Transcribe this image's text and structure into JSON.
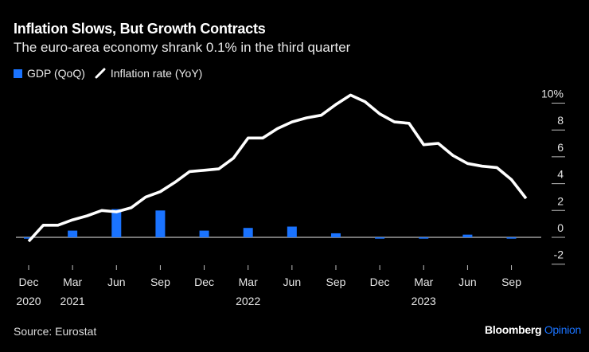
{
  "header": {
    "title": "Inflation Slows, But Growth Contracts",
    "subtitle": "The euro-area economy shrank 0.1% in the third quarter"
  },
  "legend": {
    "gdp_label": "GDP (QoQ)",
    "inflation_label": "Inflation rate (YoY)"
  },
  "footer": {
    "source": "Source: Eurostat",
    "brand_main": "Bloomberg",
    "brand_accent": "Opinion"
  },
  "colors": {
    "background": "#000000",
    "gdp_bar": "#1a73ff",
    "inflation_line": "#ffffff",
    "accent": "#1a73ff"
  },
  "chart_data": {
    "type": "bar+line",
    "title": "Inflation Slows, But Growth Contracts",
    "subtitle": "The euro-area economy shrank 0.1% in the third quarter",
    "xlabel": "",
    "ylabel": "",
    "ylim": [
      -2,
      10
    ],
    "y_ticks": [
      "10%",
      "8",
      "6",
      "4",
      "2",
      "0",
      "-2"
    ],
    "y_tick_values": [
      10,
      8,
      6,
      4,
      2,
      0,
      -2
    ],
    "y_axis_side": "right",
    "grid": false,
    "legend_position": "top-left",
    "x_ticks": [
      {
        "month": "Dec",
        "year": "2020"
      },
      {
        "month": "Mar",
        "year": "2021"
      },
      {
        "month": "Jun",
        "year": ""
      },
      {
        "month": "Sep",
        "year": ""
      },
      {
        "month": "Dec",
        "year": ""
      },
      {
        "month": "Mar",
        "year": "2022"
      },
      {
        "month": "Jun",
        "year": ""
      },
      {
        "month": "Sep",
        "year": ""
      },
      {
        "month": "Dec",
        "year": ""
      },
      {
        "month": "Mar",
        "year": "2023"
      },
      {
        "month": "Jun",
        "year": ""
      },
      {
        "month": "Sep",
        "year": ""
      }
    ],
    "series": [
      {
        "name": "GDP (QoQ)",
        "kind": "bar",
        "x": [
          "2020-12",
          "2021-03",
          "2021-06",
          "2021-09",
          "2021-12",
          "2022-03",
          "2022-06",
          "2022-09",
          "2022-12",
          "2023-03",
          "2023-06",
          "2023-09"
        ],
        "values": [
          -0.1,
          0.5,
          2.1,
          2.0,
          0.5,
          0.7,
          0.8,
          0.3,
          -0.1,
          -0.1,
          0.2,
          -0.1
        ]
      },
      {
        "name": "Inflation rate (YoY)",
        "kind": "line",
        "x": [
          "2020-12",
          "2021-01",
          "2021-02",
          "2021-03",
          "2021-04",
          "2021-05",
          "2021-06",
          "2021-07",
          "2021-08",
          "2021-09",
          "2021-10",
          "2021-11",
          "2021-12",
          "2022-01",
          "2022-02",
          "2022-03",
          "2022-04",
          "2022-05",
          "2022-06",
          "2022-07",
          "2022-08",
          "2022-09",
          "2022-10",
          "2022-11",
          "2022-12",
          "2023-01",
          "2023-02",
          "2023-03",
          "2023-04",
          "2023-05",
          "2023-06",
          "2023-07",
          "2023-08",
          "2023-09",
          "2023-10"
        ],
        "values": [
          -0.3,
          0.9,
          0.9,
          1.3,
          1.6,
          2.0,
          1.9,
          2.2,
          3.0,
          3.4,
          4.1,
          4.9,
          5.0,
          5.1,
          5.9,
          7.4,
          7.4,
          8.1,
          8.6,
          8.9,
          9.1,
          9.9,
          10.6,
          10.1,
          9.2,
          8.6,
          8.5,
          6.9,
          7.0,
          6.1,
          5.5,
          5.3,
          5.2,
          4.3,
          2.9
        ]
      }
    ]
  }
}
